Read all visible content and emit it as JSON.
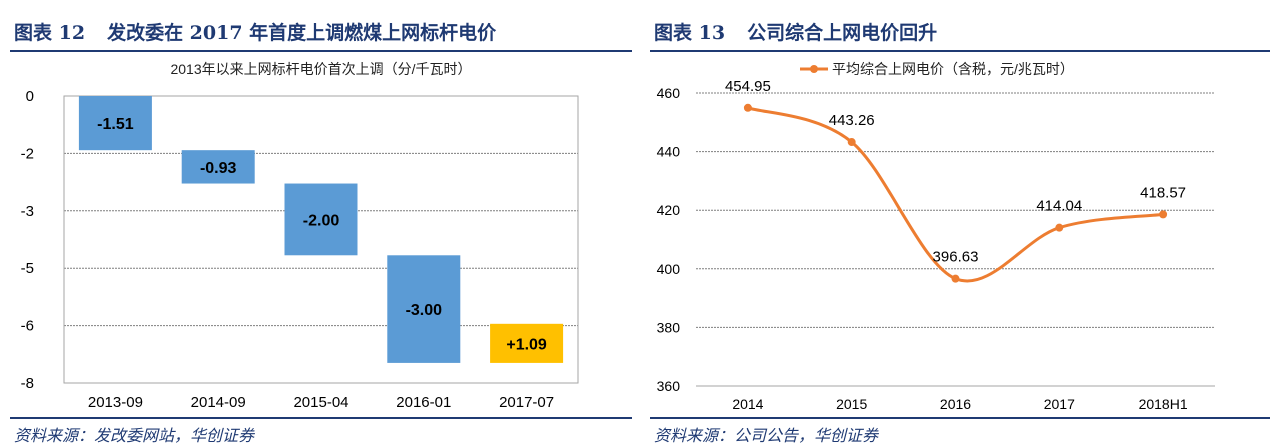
{
  "left": {
    "figure_label": "图表 12",
    "figure_title": "发改委在 2017 年首度上调燃煤上网标杆电价",
    "source": "资料来源：发改委网站，华创证券",
    "chart_data": {
      "type": "bar",
      "subtype": "waterfall",
      "title": "2013年以来上网标杆电价首次上调（分/千瓦时）",
      "categories": [
        "2013-09",
        "2014-09",
        "2015-04",
        "2016-01",
        "2017-07"
      ],
      "values": [
        -1.51,
        -0.93,
        -2.0,
        -3.0,
        1.09
      ],
      "labels": [
        "-1.51",
        "-0.93",
        "-2.00",
        "-3.00",
        "+1.09"
      ],
      "ylim": [
        -8,
        0
      ],
      "yticks": [
        "0",
        "-2",
        "-3",
        "-5",
        "-6",
        "-8"
      ],
      "grid": true,
      "colors": {
        "decrease": "#5b9bd5",
        "increase": "#ffc000"
      }
    }
  },
  "right": {
    "figure_label": "图表 13",
    "figure_title": "公司综合上网电价回升",
    "source": "资料来源：公司公告，华创证券",
    "chart_data": {
      "type": "line",
      "categories": [
        "2014",
        "2015",
        "2016",
        "2017",
        "2018H1"
      ],
      "series": [
        {
          "name": "平均综合上网电价（含税，元/兆瓦时）",
          "values": [
            454.95,
            443.26,
            396.63,
            414.04,
            418.57
          ],
          "color": "#ed7d31"
        }
      ],
      "labels": [
        "454.95",
        "443.26",
        "396.63",
        "414.04",
        "418.57"
      ],
      "ylim": [
        360,
        460
      ],
      "yticks": [
        "460",
        "440",
        "420",
        "400",
        "380",
        "360"
      ],
      "grid": true,
      "legend": "top-center"
    }
  }
}
